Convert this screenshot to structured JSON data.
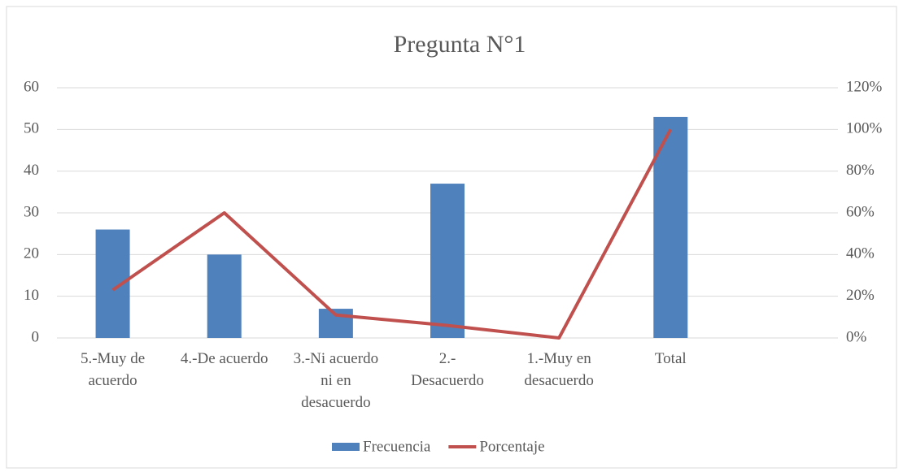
{
  "chart_data": {
    "type": "bar_line",
    "title": "Pregunta  N°1",
    "categories": [
      "5.-Muy de acuerdo",
      "4.-De acuerdo",
      "3.-Ni acuerdo ni en desacuerdo",
      "2.- Desacuerdo",
      "1.-Muy en desacuerdo",
      "Total",
      null
    ],
    "series": [
      {
        "name": "Frecuencia",
        "color": "#4f81bd",
        "type": "bar",
        "values": [
          26,
          20,
          7,
          37,
          0,
          53,
          null
        ]
      },
      {
        "name": "Porcentaje",
        "color": "#c0504d",
        "type": "line",
        "axis": "y2",
        "values": [
          23,
          60,
          11,
          6,
          0,
          100,
          null
        ]
      }
    ],
    "ylim": [
      0,
      60
    ],
    "yticks": [
      0,
      10,
      20,
      30,
      40,
      50,
      60
    ],
    "y2lim": [
      0,
      120
    ],
    "y2ticks": [
      {
        "value": 0,
        "label": "0%"
      },
      {
        "value": 20,
        "label": "20%"
      },
      {
        "value": 40,
        "label": "40%"
      },
      {
        "value": 60,
        "label": "60%"
      },
      {
        "value": 80,
        "label": "80%"
      },
      {
        "value": 100,
        "label": "100%"
      },
      {
        "value": 120,
        "label": "120%"
      }
    ],
    "grid": true,
    "legend": "bottom"
  }
}
